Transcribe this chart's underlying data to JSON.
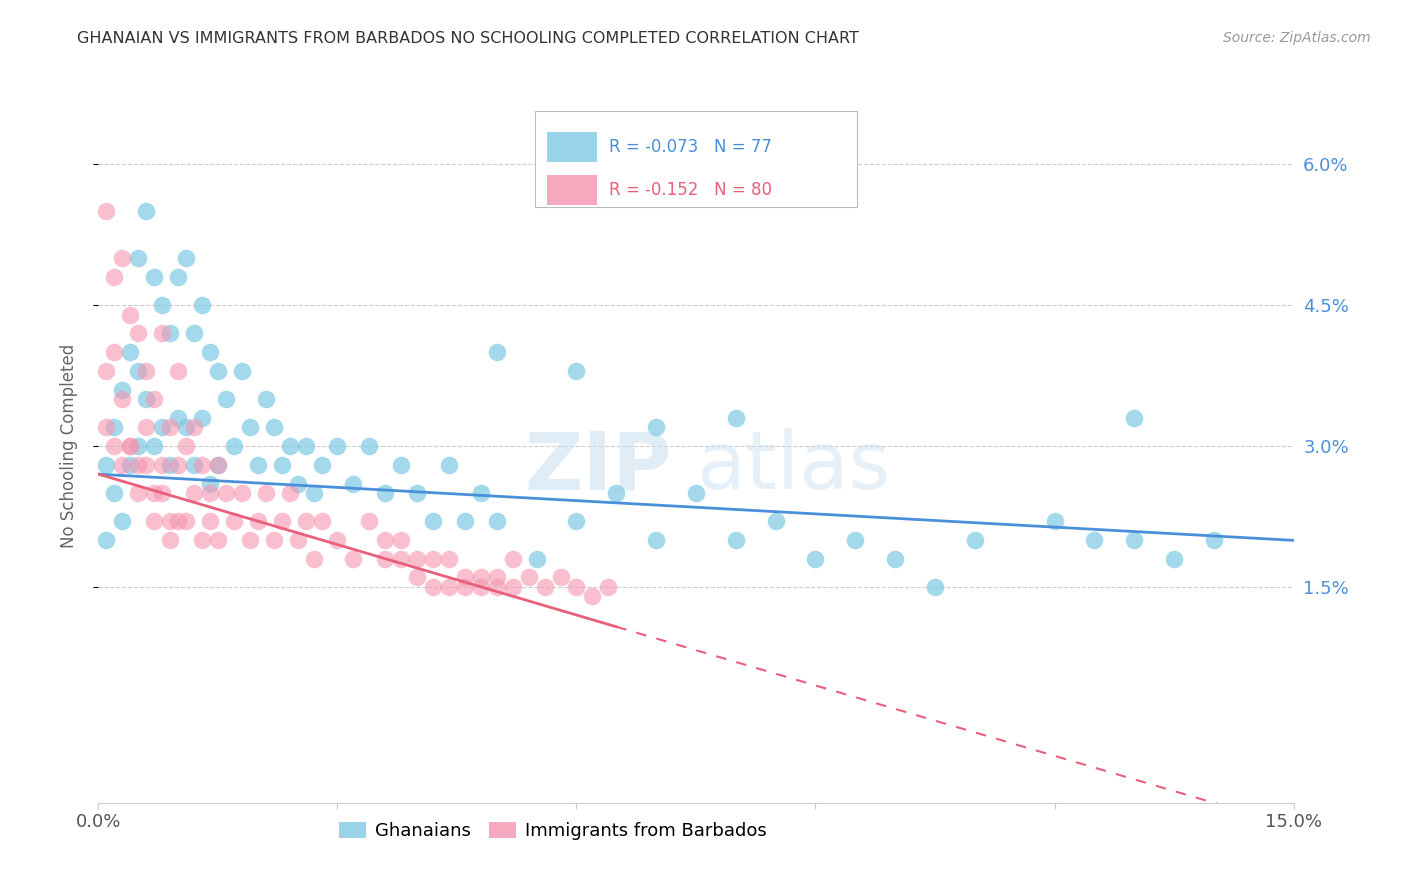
{
  "title": "GHANAIAN VS IMMIGRANTS FROM BARBADOS NO SCHOOLING COMPLETED CORRELATION CHART",
  "source": "Source: ZipAtlas.com",
  "ylabel": "No Schooling Completed",
  "ytick_labels": [
    "6.0%",
    "4.5%",
    "3.0%",
    "1.5%"
  ],
  "ytick_values": [
    0.06,
    0.045,
    0.03,
    0.015
  ],
  "xmin": 0.0,
  "xmax": 0.15,
  "ymin": -0.008,
  "ymax": 0.068,
  "legend_ghanaian_R": "-0.073",
  "legend_ghanaian_N": "77",
  "legend_barbados_R": "-0.152",
  "legend_barbados_N": "80",
  "color_ghanaian": "#7ec8e3",
  "color_barbados": "#f595b0",
  "color_trendline_ghanaian": "#4a90d9",
  "color_trendline_barbados": "#e8607a",
  "watermark_zip": "ZIP",
  "watermark_atlas": "atlas",
  "ghanaian_x": [
    0.001,
    0.001,
    0.002,
    0.002,
    0.003,
    0.003,
    0.004,
    0.004,
    0.005,
    0.005,
    0.005,
    0.006,
    0.006,
    0.007,
    0.007,
    0.008,
    0.008,
    0.009,
    0.009,
    0.01,
    0.01,
    0.011,
    0.011,
    0.012,
    0.012,
    0.013,
    0.013,
    0.014,
    0.014,
    0.015,
    0.015,
    0.016,
    0.017,
    0.018,
    0.019,
    0.02,
    0.021,
    0.022,
    0.023,
    0.024,
    0.025,
    0.026,
    0.027,
    0.028,
    0.03,
    0.032,
    0.034,
    0.036,
    0.038,
    0.04,
    0.042,
    0.044,
    0.046,
    0.048,
    0.05,
    0.055,
    0.06,
    0.065,
    0.07,
    0.075,
    0.08,
    0.085,
    0.09,
    0.095,
    0.1,
    0.105,
    0.11,
    0.12,
    0.125,
    0.13,
    0.135,
    0.14,
    0.05,
    0.06,
    0.07,
    0.08,
    0.13
  ],
  "ghanaian_y": [
    0.028,
    0.02,
    0.032,
    0.025,
    0.036,
    0.022,
    0.04,
    0.028,
    0.05,
    0.038,
    0.03,
    0.055,
    0.035,
    0.048,
    0.03,
    0.045,
    0.032,
    0.042,
    0.028,
    0.048,
    0.033,
    0.05,
    0.032,
    0.042,
    0.028,
    0.045,
    0.033,
    0.04,
    0.026,
    0.038,
    0.028,
    0.035,
    0.03,
    0.038,
    0.032,
    0.028,
    0.035,
    0.032,
    0.028,
    0.03,
    0.026,
    0.03,
    0.025,
    0.028,
    0.03,
    0.026,
    0.03,
    0.025,
    0.028,
    0.025,
    0.022,
    0.028,
    0.022,
    0.025,
    0.022,
    0.018,
    0.022,
    0.025,
    0.02,
    0.025,
    0.02,
    0.022,
    0.018,
    0.02,
    0.018,
    0.015,
    0.02,
    0.022,
    0.02,
    0.02,
    0.018,
    0.02,
    0.04,
    0.038,
    0.032,
    0.033,
    0.033
  ],
  "barbados_x": [
    0.001,
    0.001,
    0.002,
    0.002,
    0.003,
    0.003,
    0.004,
    0.004,
    0.005,
    0.005,
    0.006,
    0.006,
    0.007,
    0.007,
    0.008,
    0.008,
    0.009,
    0.009,
    0.01,
    0.01,
    0.011,
    0.011,
    0.012,
    0.012,
    0.013,
    0.013,
    0.014,
    0.014,
    0.015,
    0.015,
    0.016,
    0.017,
    0.018,
    0.019,
    0.02,
    0.021,
    0.022,
    0.023,
    0.024,
    0.025,
    0.026,
    0.027,
    0.028,
    0.03,
    0.032,
    0.034,
    0.036,
    0.038,
    0.04,
    0.042,
    0.044,
    0.046,
    0.048,
    0.05,
    0.052,
    0.036,
    0.038,
    0.04,
    0.042,
    0.044,
    0.046,
    0.048,
    0.05,
    0.052,
    0.054,
    0.056,
    0.058,
    0.06,
    0.062,
    0.064,
    0.001,
    0.002,
    0.003,
    0.004,
    0.005,
    0.006,
    0.007,
    0.008,
    0.009,
    0.01
  ],
  "barbados_y": [
    0.055,
    0.038,
    0.048,
    0.04,
    0.05,
    0.035,
    0.044,
    0.03,
    0.042,
    0.028,
    0.038,
    0.032,
    0.035,
    0.025,
    0.042,
    0.028,
    0.032,
    0.022,
    0.038,
    0.028,
    0.03,
    0.022,
    0.032,
    0.025,
    0.028,
    0.02,
    0.025,
    0.022,
    0.028,
    0.02,
    0.025,
    0.022,
    0.025,
    0.02,
    0.022,
    0.025,
    0.02,
    0.022,
    0.025,
    0.02,
    0.022,
    0.018,
    0.022,
    0.02,
    0.018,
    0.022,
    0.018,
    0.02,
    0.018,
    0.015,
    0.018,
    0.015,
    0.016,
    0.015,
    0.018,
    0.02,
    0.018,
    0.016,
    0.018,
    0.015,
    0.016,
    0.015,
    0.016,
    0.015,
    0.016,
    0.015,
    0.016,
    0.015,
    0.014,
    0.015,
    0.032,
    0.03,
    0.028,
    0.03,
    0.025,
    0.028,
    0.022,
    0.025,
    0.02,
    0.022
  ]
}
